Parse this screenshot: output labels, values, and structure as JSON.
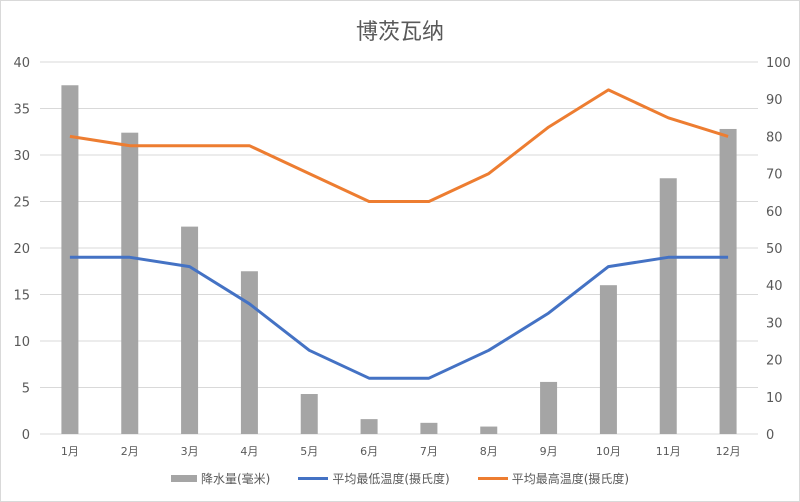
{
  "chart_data": {
    "type": "bar+line",
    "title": "博茨瓦纳",
    "categories": [
      "1月",
      "2月",
      "3月",
      "4月",
      "5月",
      "6月",
      "7月",
      "8月",
      "9月",
      "10月",
      "11月",
      "12月"
    ],
    "series": [
      {
        "name": "降水量(毫米)",
        "type": "bar",
        "color": "#a5a5a5",
        "axis": "left",
        "values": [
          37.5,
          32.4,
          22.3,
          17.5,
          4.3,
          1.6,
          1.2,
          0.8,
          5.6,
          16.0,
          27.5,
          32.8
        ]
      },
      {
        "name": "平均最低温度(摄氏度)",
        "type": "line",
        "color": "#4472c4",
        "axis": "left",
        "values": [
          19,
          19,
          18,
          14,
          9,
          6,
          6,
          9,
          13,
          18,
          19,
          19
        ]
      },
      {
        "name": "平均最高温度(摄氏度)",
        "type": "line",
        "color": "#ed7d31",
        "axis": "left",
        "values": [
          32,
          31,
          31,
          31,
          28,
          25,
          25,
          28,
          33,
          37,
          34,
          32
        ]
      }
    ],
    "left_axis": {
      "ylim": [
        0,
        40
      ],
      "ticks": [
        "0",
        "5",
        "10",
        "15",
        "20",
        "25",
        "30",
        "35",
        "40"
      ]
    },
    "right_axis": {
      "ylim": [
        0,
        100
      ],
      "ticks": [
        "0",
        "10",
        "20",
        "30",
        "40",
        "50",
        "60",
        "70",
        "80",
        "90",
        "100"
      ]
    },
    "grid": true,
    "legend_position": "bottom",
    "xlabel": "",
    "ylabel": ""
  }
}
